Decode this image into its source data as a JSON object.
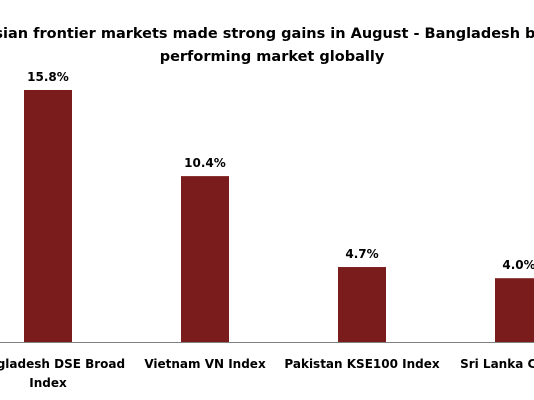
{
  "chart_data": {
    "type": "bar",
    "title": "Asian frontier markets made strong gains in August - Bangladesh best performing market globally",
    "title_lines": [
      "Asian frontier markets made strong gains in August - Bangladesh best",
      "performing market globally"
    ],
    "categories": [
      "Bangladesh DSE Broad Index",
      "Vietnam VN Index",
      "Pakistan KSE100 Index",
      "Sri Lanka CSEALL"
    ],
    "category_lines": [
      [
        "Bangladesh DSE Broad",
        "Index"
      ],
      [
        "Vietnam VN Index"
      ],
      [
        "Pakistan KSE100 Index"
      ],
      [
        "Sri Lanka CSEALL"
      ]
    ],
    "values": [
      15.8,
      10.4,
      4.7,
      4.0
    ],
    "data_labels": [
      "15.8%",
      "10.4%",
      "4.7%",
      "4.0%"
    ],
    "unit": "%",
    "ylim": [
      0,
      17.4
    ],
    "grid": false,
    "legend": "none",
    "bar_color": "#7b1c1c",
    "xlabel": "",
    "ylabel": ""
  }
}
